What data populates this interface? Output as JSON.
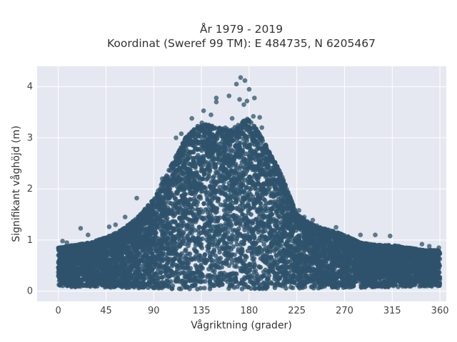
{
  "chart_data": {
    "type": "scatter",
    "title": "År 1979 - 2019",
    "subtitle": "Koordinat (Sweref 99 TM): E 484735, N 6205467",
    "xlabel": "Vågriktning (grader)",
    "ylabel": "Signifikant våghöjd (m)",
    "xlim": [
      -20,
      366
    ],
    "ylim": [
      -0.2,
      4.4
    ],
    "x_ticks": [
      0,
      45,
      90,
      135,
      180,
      225,
      270,
      315,
      360
    ],
    "y_ticks": [
      0,
      1,
      2,
      3,
      4
    ],
    "grid": true,
    "legend": "none",
    "marker_color": "#2e536b",
    "plot_background": "#e5e8f0",
    "envelope": {
      "x": [
        0,
        15,
        30,
        45,
        60,
        75,
        90,
        105,
        120,
        135,
        150,
        165,
        180,
        195,
        210,
        225,
        240,
        255,
        270,
        285,
        300,
        315,
        330,
        345,
        360
      ],
      "y_max": [
        0.85,
        0.9,
        0.95,
        1.05,
        1.2,
        1.45,
        1.8,
        2.4,
        3.0,
        3.3,
        3.2,
        3.2,
        3.4,
        2.9,
        2.3,
        1.5,
        1.3,
        1.2,
        1.1,
        0.95,
        0.9,
        0.9,
        0.85,
        0.8,
        0.8
      ],
      "y_min": [
        0.1,
        0.08,
        0.08,
        0.07,
        0.07,
        0.06,
        0.05,
        0.05,
        0.04,
        0.04,
        0.04,
        0.04,
        0.04,
        0.04,
        0.05,
        0.05,
        0.06,
        0.06,
        0.07,
        0.07,
        0.08,
        0.08,
        0.09,
        0.09,
        0.1
      ]
    },
    "outliers": [
      {
        "x": 172,
        "y": 4.18
      },
      {
        "x": 176,
        "y": 4.12
      },
      {
        "x": 168,
        "y": 4.05
      },
      {
        "x": 180,
        "y": 3.95
      },
      {
        "x": 161,
        "y": 3.82
      },
      {
        "x": 171,
        "y": 3.75
      },
      {
        "x": 178,
        "y": 3.72
      },
      {
        "x": 175,
        "y": 3.65
      },
      {
        "x": 149,
        "y": 3.78
      },
      {
        "x": 149,
        "y": 3.7
      },
      {
        "x": 137,
        "y": 3.53
      },
      {
        "x": 144,
        "y": 3.45
      },
      {
        "x": 185,
        "y": 3.78
      },
      {
        "x": 184,
        "y": 3.42
      },
      {
        "x": 190,
        "y": 3.4
      },
      {
        "x": 164,
        "y": 3.38
      },
      {
        "x": 126,
        "y": 3.38
      },
      {
        "x": 192,
        "y": 3.2
      },
      {
        "x": 116,
        "y": 3.08
      },
      {
        "x": 111,
        "y": 3.0
      },
      {
        "x": 21,
        "y": 1.23
      },
      {
        "x": 28,
        "y": 1.1
      },
      {
        "x": 48,
        "y": 1.26
      },
      {
        "x": 54,
        "y": 1.3
      },
      {
        "x": 63,
        "y": 1.45
      },
      {
        "x": 74,
        "y": 1.82
      },
      {
        "x": 227,
        "y": 1.58
      },
      {
        "x": 232,
        "y": 1.45
      },
      {
        "x": 240,
        "y": 1.39
      },
      {
        "x": 244,
        "y": 1.28
      },
      {
        "x": 262,
        "y": 1.25
      },
      {
        "x": 267,
        "y": 1.1
      },
      {
        "x": 285,
        "y": 1.1
      },
      {
        "x": 299,
        "y": 1.1
      },
      {
        "x": 313,
        "y": 1.08
      },
      {
        "x": 343,
        "y": 0.92
      },
      {
        "x": 350,
        "y": 0.88
      },
      {
        "x": 359,
        "y": 0.85
      },
      {
        "x": 216,
        "y": 1.95
      },
      {
        "x": 204,
        "y": 2.5
      },
      {
        "x": 98,
        "y": 2.2
      },
      {
        "x": 83,
        "y": 1.55
      },
      {
        "x": 4,
        "y": 0.98
      },
      {
        "x": 8,
        "y": 0.95
      }
    ]
  }
}
